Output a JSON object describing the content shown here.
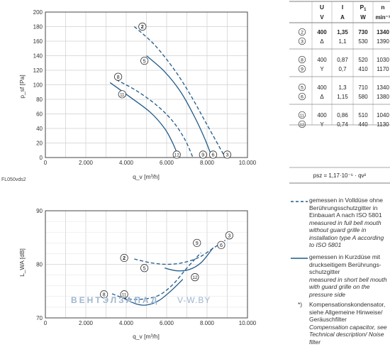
{
  "chart_data": [
    {
      "type": "line",
      "ylabel": "p_sf [Pa]",
      "xlabel": "q_v [m³/h]",
      "xlim": [
        0,
        10000
      ],
      "ylim": [
        0,
        200
      ],
      "xticks": [
        0,
        2000,
        4000,
        6000,
        8000,
        10000
      ],
      "xtick_labels": [
        "0",
        "2.000",
        "4.000",
        "6.000",
        "8.000",
        "10.000"
      ],
      "yticks": [
        0,
        20,
        40,
        60,
        80,
        100,
        120,
        140,
        160,
        180,
        200
      ],
      "grid": true,
      "footnote": "FL050vds2",
      "series": [
        {
          "name": "2",
          "style": "dashed",
          "x": [
            4400,
            5400,
            6400,
            7200,
            8000,
            8600,
            8900
          ],
          "y": [
            180,
            155,
            120,
            85,
            45,
            15,
            0
          ],
          "label_at": [
            4800,
            180
          ]
        },
        {
          "name": "3",
          "style": "solid",
          "x": [
            8900
          ],
          "y": [
            0
          ],
          "label_at": [
            9000,
            4
          ]
        },
        {
          "name": "5",
          "style": "solid",
          "x": [
            5000,
            5900,
            6700,
            7400,
            7900,
            8250
          ],
          "y": [
            140,
            118,
            90,
            55,
            25,
            0
          ],
          "label_at": [
            4900,
            133
          ]
        },
        {
          "name": "6",
          "style": "solid",
          "x": [
            8250
          ],
          "y": [
            0
          ],
          "label_at": [
            8300,
            4
          ]
        },
        {
          "name": "8",
          "style": "dashed",
          "x": [
            3500,
            4500,
            5500,
            6300,
            6900,
            7300
          ],
          "y": [
            107,
            92,
            72,
            50,
            25,
            0
          ],
          "label_at": [
            3600,
            111
          ]
        },
        {
          "name": "9",
          "style": "solid",
          "x": [
            7300
          ],
          "y": [
            0
          ],
          "label_at": [
            7800,
            4
          ]
        },
        {
          "name": "11",
          "style": "solid",
          "x": [
            3200,
            4200,
            5200,
            5900,
            6300,
            6600
          ],
          "y": [
            103,
            83,
            62,
            40,
            20,
            0
          ],
          "label_at": [
            3800,
            87
          ]
        },
        {
          "name": "12",
          "style": "solid",
          "x": [
            6600
          ],
          "y": [
            0
          ],
          "label_at": [
            6500,
            4
          ]
        }
      ]
    },
    {
      "type": "line",
      "ylabel": "L_WA [dB]",
      "xlabel": "q_v [m³/h]",
      "xlim": [
        0,
        10000
      ],
      "ylim": [
        70,
        90
      ],
      "xticks": [
        0,
        2000,
        4000,
        6000,
        8000,
        10000
      ],
      "xtick_labels": [
        "0",
        "2.000",
        "4.000",
        "6.000",
        "8.000",
        "10.000"
      ],
      "yticks": [
        70,
        80,
        90
      ],
      "grid": true,
      "series": [
        {
          "name": "2",
          "style": "dashed",
          "x": [
            4400,
            5200,
            6000,
            6800,
            7600,
            8300,
            8900
          ],
          "y": [
            81,
            80.3,
            80,
            80.3,
            81.3,
            83,
            84.5
          ],
          "label_at": [
            3900,
            81.2
          ]
        },
        {
          "name": "3",
          "style": "solid",
          "x": [
            8900
          ],
          "y": [
            84.5
          ],
          "label_at": [
            9100,
            85.4
          ]
        },
        {
          "name": "5",
          "style": "solid",
          "x": [
            5900,
            6500,
            7100,
            7700,
            8300
          ],
          "y": [
            79.3,
            78.8,
            79,
            80.3,
            83.1
          ],
          "label_at": [
            4900,
            79.3
          ]
        },
        {
          "name": "6",
          "style": "solid",
          "x": [
            8300
          ],
          "y": [
            83.1
          ],
          "label_at": [
            8700,
            83.6
          ]
        },
        {
          "name": "8",
          "style": "dashed",
          "x": [
            3300,
            4000,
            4800,
            5600,
            6300,
            7000,
            7700
          ],
          "y": [
            74.5,
            73.6,
            73.5,
            74.2,
            76.2,
            79.3,
            82.2
          ],
          "label_at": [
            2900,
            74.4
          ]
        },
        {
          "name": "9",
          "style": "solid",
          "x": [
            7700
          ],
          "y": [
            82.2
          ],
          "label_at": [
            7500,
            84
          ]
        },
        {
          "name": "11",
          "style": "solid",
          "x": [
            3900,
            4500,
            5000,
            5600,
            6200,
            6800
          ],
          "y": [
            73.6,
            72.6,
            72.4,
            73.2,
            75,
            77.2
          ],
          "label_at": [
            3900,
            74.4
          ]
        },
        {
          "name": "12",
          "style": "solid",
          "x": [
            6800
          ],
          "y": [
            77.2
          ],
          "label_at": [
            7400,
            77.6
          ]
        }
      ]
    }
  ],
  "table": {
    "headers": [
      "",
      "U",
      "I",
      "P1",
      "n"
    ],
    "units": [
      "",
      "V",
      "A",
      "W",
      "min⁻¹"
    ],
    "groups": [
      [
        {
          "id": "2",
          "U": "400",
          "I": "1,35",
          "P": "730",
          "n": "1340",
          "bold": true
        },
        {
          "id": "3",
          "U": "Δ",
          "I": "1,1",
          "P": "530",
          "n": "1390"
        }
      ],
      [
        {
          "id": "8",
          "U": "400",
          "I": "0,87",
          "P": "520",
          "n": "1030"
        },
        {
          "id": "9",
          "U": "Y",
          "I": "0,7",
          "P": "410",
          "n": "1170"
        }
      ],
      [
        {
          "id": "5",
          "U": "400",
          "I": "1,3",
          "P": "710",
          "n": "1340"
        },
        {
          "id": "6",
          "U": "Δ",
          "I": "1,15",
          "P": "580",
          "n": "1380"
        }
      ],
      [
        {
          "id": "11",
          "U": "400",
          "I": "0,86",
          "P": "510",
          "n": "1040"
        },
        {
          "id": "12",
          "U": "Y",
          "I": "0,74",
          "P": "440",
          "n": "1130"
        }
      ]
    ],
    "formula": "psz = 1,17·10⁻⁶ · qv²"
  },
  "legend": {
    "dashed_de": "gemessen in Volldüse ohne Berührungsschutzgitter in Einbauart A nach ISO 5801",
    "dashed_en": "measured in full bell mouth without guard grille in installation type A according to ISO 5801",
    "solid_de": "gemessen in Kurzdüse mit druckseitigem Berührungs-schutzgitter",
    "solid_en": "measured in short bell mouth with guard grille on the pressure side",
    "note_mark": "*)",
    "note_de": "Kompensationskondensator, siehe Allgemeine Hinweise/ Geräuschfilter",
    "note_en": "Compensation capacitor, see Technical description/ Noise filter"
  },
  "watermark": {
    "text1": "ВЕНТЭЛЗАПАД",
    "text2": "V-W.BY"
  },
  "colors": {
    "curve": "#1f5a8a",
    "grid": "#cfcfcf",
    "axis": "#444444",
    "watermark": "#9fb6cf"
  }
}
